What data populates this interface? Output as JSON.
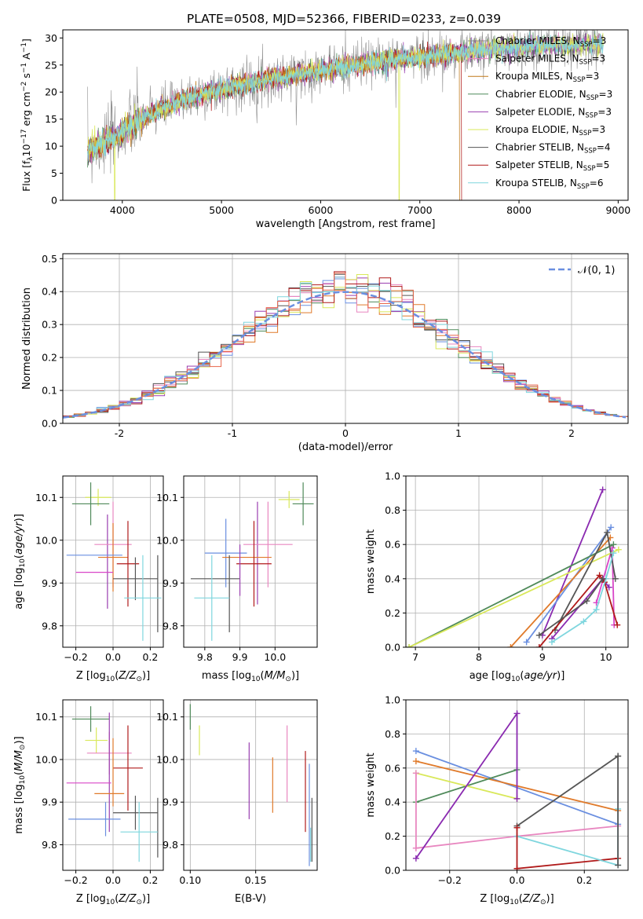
{
  "figure_title": "PLATE=0508, MJD=52366, FIBERID=0233, z=0.039",
  "colors": {
    "Chabrier MILES": "#8a8a8a",
    "Salpeter MILES": "#e887c0",
    "Kroupa MILES": "#c0781a",
    "Chabrier ELODIE": "#4f8a5a",
    "Salpeter ELODIE": "#9a3fb0",
    "Kroupa ELODIE": "#d9e85a",
    "Chabrier STELIB": "#555555",
    "Salpeter STELIB": "#b01a1a",
    "Kroupa STELIB": "#7fd6de",
    "extra_blue": "#6a8fe0",
    "extra_orange": "#e07a2a",
    "extra_magenta": "#d946c8",
    "extra_purple": "#8a2ab0"
  },
  "chart_data": [
    {
      "id": "spectrum",
      "type": "line",
      "xlabel": "wavelength [Angstrom, rest frame]",
      "ylabel": "Flux [f_λ 10^-17 erg cm^-2 s^-1 A^-1]",
      "xlim": [
        3400,
        9100
      ],
      "ylim": [
        0,
        31.5
      ],
      "xticks": [
        4000,
        5000,
        6000,
        7000,
        8000,
        9000
      ],
      "yticks": [
        0,
        5,
        10,
        15,
        20,
        25,
        30
      ],
      "legend_position": "top-right",
      "legend": [
        {
          "label": "Chabrier MILES, N",
          "sub": "SSP",
          "suffix": "=3",
          "color": "#8a8a8a"
        },
        {
          "label": "Salpeter MILES, N",
          "sub": "SSP",
          "suffix": "=3",
          "color": "#e887c0"
        },
        {
          "label": "Kroupa MILES, N",
          "sub": "SSP",
          "suffix": "=3",
          "color": "#c0781a"
        },
        {
          "label": "Chabrier ELODIE, N",
          "sub": "SSP",
          "suffix": "=3",
          "color": "#4f8a5a"
        },
        {
          "label": "Salpeter ELODIE, N",
          "sub": "SSP",
          "suffix": "=3",
          "color": "#9a3fb0"
        },
        {
          "label": "Kroupa ELODIE, N",
          "sub": "SSP",
          "suffix": "=3",
          "color": "#d9e85a"
        },
        {
          "label": "Chabrier STELIB, N",
          "sub": "SSP",
          "suffix": "=4",
          "color": "#555555"
        },
        {
          "label": "Salpeter STELIB, N",
          "sub": "SSP",
          "suffix": "=5",
          "color": "#b01a1a"
        },
        {
          "label": "Kroupa STELIB, N",
          "sub": "SSP",
          "suffix": "=6",
          "color": "#7fd6de"
        }
      ],
      "continuum": [
        [
          3650,
          9
        ],
        [
          3800,
          10.5
        ],
        [
          3950,
          12
        ],
        [
          4100,
          14
        ],
        [
          4300,
          16
        ],
        [
          4600,
          18.5
        ],
        [
          5000,
          20.5
        ],
        [
          5500,
          22.5
        ],
        [
          6000,
          24
        ],
        [
          6500,
          25.5
        ],
        [
          7000,
          26.5
        ],
        [
          7500,
          27.5
        ],
        [
          8000,
          28.3
        ],
        [
          8500,
          28.7
        ],
        [
          8800,
          29
        ]
      ],
      "cutoffs": [
        {
          "model": "Kroupa ELODIE",
          "x": 3920
        },
        {
          "model": "Kroupa ELODIE",
          "x": 6790
        },
        {
          "model": "Kroupa MILES",
          "x": 7400
        },
        {
          "model": "Salpeter STELIB",
          "x": 7420
        }
      ]
    },
    {
      "id": "residuals",
      "type": "step",
      "xlabel": "(data-model)/error",
      "ylabel": "Normed distribution",
      "xlim": [
        -2.5,
        2.5
      ],
      "ylim": [
        0,
        0.515
      ],
      "xticks": [
        -2,
        -1,
        0,
        1,
        2
      ],
      "yticks": [
        0.0,
        0.1,
        0.2,
        0.3,
        0.4,
        0.5
      ],
      "bin_width": 0.1,
      "legend": {
        "label": "𝒩(0, 1)",
        "color": "#6a8fe0"
      },
      "series_colors": [
        "#6a8fe0",
        "#e07a2a",
        "#4f8a5a",
        "#9a3fb0",
        "#e887c0",
        "#d9e85a",
        "#555555",
        "#b01a1a",
        "#7fd6de",
        "#e8654a"
      ]
    },
    {
      "id": "age_vs_Z",
      "type": "errorbar",
      "xlabel": "Z [log10(Z/Z⊙)]",
      "ylabel": "age  [log10(age/yr)]",
      "xlim": [
        -0.27,
        0.27
      ],
      "ylim": [
        9.75,
        10.15
      ],
      "xticks": [
        -0.2,
        0.0,
        0.2
      ],
      "yticks": [
        9.8,
        9.9,
        10.0,
        10.1
      ],
      "points": [
        {
          "x": -0.08,
          "xerr": 0.07,
          "y": 10.1,
          "yerr": 0.02,
          "color": "#d9e85a"
        },
        {
          "x": -0.12,
          "xerr": 0.1,
          "y": 10.085,
          "yerr": 0.05,
          "color": "#4f8a5a"
        },
        {
          "x": -0.03,
          "xerr": 0.0,
          "y": 9.95,
          "yerr": 0.11,
          "color": "#9a3fb0"
        },
        {
          "x": 0.0,
          "xerr": 0.1,
          "y": 9.99,
          "yerr": 0.1,
          "color": "#e887c0"
        },
        {
          "x": 0.0,
          "xerr": 0.08,
          "y": 9.96,
          "yerr": 0.08,
          "color": "#e07a2a"
        },
        {
          "x": -0.1,
          "xerr": 0.15,
          "y": 9.965,
          "yerr": 0.0,
          "color": "#6a8fe0"
        },
        {
          "x": 0.08,
          "xerr": 0.06,
          "y": 9.945,
          "yerr": 0.1,
          "color": "#b01a1a"
        },
        {
          "x": -0.1,
          "xerr": 0.1,
          "y": 9.925,
          "yerr": 0.0,
          "color": "#d946c8"
        },
        {
          "x": 0.12,
          "xerr": 0.12,
          "y": 9.91,
          "yerr": 0.05,
          "color": "#555555"
        },
        {
          "x": 0.24,
          "xerr": 0.0,
          "y": 9.875,
          "yerr": 0.09,
          "color": "#555555"
        },
        {
          "x": 0.16,
          "xerr": 0.1,
          "y": 9.865,
          "yerr": 0.1,
          "color": "#7fd6de"
        }
      ]
    },
    {
      "id": "age_vs_mass",
      "type": "errorbar",
      "xlabel": "mass [log10(M/M⊙)]",
      "xlim": [
        9.74,
        10.12
      ],
      "ylim": [
        9.75,
        10.15
      ],
      "xticks": [
        9.8,
        9.9,
        10.0
      ],
      "yticks": [
        9.8,
        9.9,
        10.0,
        10.1
      ],
      "points": [
        {
          "x": 10.04,
          "xerr": 0.03,
          "y": 10.095,
          "yerr": 0.02,
          "color": "#d9e85a"
        },
        {
          "x": 10.08,
          "xerr": 0.03,
          "y": 10.085,
          "yerr": 0.05,
          "color": "#4f8a5a"
        },
        {
          "x": 9.95,
          "xerr": 0.0,
          "y": 9.97,
          "yerr": 0.12,
          "color": "#9a3fb0"
        },
        {
          "x": 9.98,
          "xerr": 0.07,
          "y": 9.99,
          "yerr": 0.1,
          "color": "#e887c0"
        },
        {
          "x": 9.86,
          "xerr": 0.06,
          "y": 9.97,
          "yerr": 0.08,
          "color": "#6a8fe0"
        },
        {
          "x": 9.92,
          "xerr": 0.07,
          "y": 9.96,
          "yerr": 0.0,
          "color": "#e07a2a"
        },
        {
          "x": 9.94,
          "xerr": 0.05,
          "y": 9.945,
          "yerr": 0.1,
          "color": "#b01a1a"
        },
        {
          "x": 9.83,
          "xerr": 0.07,
          "y": 9.91,
          "yerr": 0.0,
          "color": "#555555"
        },
        {
          "x": 9.87,
          "xerr": 0.0,
          "y": 9.875,
          "yerr": 0.09,
          "color": "#555555"
        },
        {
          "x": 9.82,
          "xerr": 0.05,
          "y": 9.865,
          "yerr": 0.1,
          "color": "#7fd6de"
        },
        {
          "x": 9.9,
          "xerr": 0.0,
          "y": 9.93,
          "yerr": 0.06,
          "color": "#9a3fb0"
        }
      ]
    },
    {
      "id": "mass_weight_vs_age",
      "type": "line",
      "xlabel": "age  [log10(age/yr)]",
      "ylabel": "mass weight",
      "xlim": [
        6.85,
        10.35
      ],
      "ylim": [
        0.0,
        1.0
      ],
      "xticks": [
        7,
        8,
        9,
        10
      ],
      "yticks": [
        0.0,
        0.2,
        0.4,
        0.6,
        0.8,
        1.0
      ],
      "series": [
        {
          "color": "#d946c8",
          "x": [
            9.85,
            10.1,
            10.13
          ],
          "y": [
            0.26,
            0.58,
            0.13
          ]
        },
        {
          "color": "#8a2ab0",
          "x": [
            9.0,
            9.95
          ],
          "y": [
            0.07,
            0.92
          ]
        },
        {
          "color": "#6a8fe0",
          "x": [
            8.75,
            10.08
          ],
          "y": [
            0.03,
            0.7
          ]
        },
        {
          "color": "#e07a2a",
          "x": [
            8.5,
            10.07
          ],
          "y": [
            0.0,
            0.64
          ]
        },
        {
          "color": "#4f8a5a",
          "x": [
            6.9,
            10.12
          ],
          "y": [
            0.0,
            0.6
          ]
        },
        {
          "color": "#d9e85a",
          "x": [
            6.9,
            10.2
          ],
          "y": [
            0.0,
            0.57
          ]
        },
        {
          "color": "#555555",
          "x": [
            9.2,
            10.02,
            10.15
          ],
          "y": [
            0.1,
            0.67,
            0.4
          ]
        },
        {
          "color": "#8a2ab0",
          "x": [
            9.15,
            9.95,
            10.05
          ],
          "y": [
            0.05,
            0.4,
            0.35
          ]
        },
        {
          "color": "#b01a1a",
          "x": [
            8.95,
            9.9,
            9.98,
            10.18
          ],
          "y": [
            0.0,
            0.42,
            0.38,
            0.13
          ]
        },
        {
          "color": "#7fd6de",
          "x": [
            9.15,
            9.65,
            9.85,
            10.0,
            10.12
          ],
          "y": [
            0.03,
            0.15,
            0.22,
            0.4,
            0.55
          ]
        },
        {
          "color": "#555555",
          "x": [
            8.95,
            9.7,
            9.95
          ],
          "y": [
            0.07,
            0.27,
            0.4
          ]
        }
      ]
    },
    {
      "id": "mass_vs_Z",
      "type": "errorbar",
      "xlabel": "Z [log10(Z/Z⊙)]",
      "ylabel": "mass [log10(M/M⊙)]",
      "xlim": [
        -0.27,
        0.27
      ],
      "ylim": [
        9.74,
        10.14
      ],
      "xticks": [
        -0.2,
        0.0,
        0.2
      ],
      "yticks": [
        9.8,
        9.9,
        10.0,
        10.1
      ],
      "points": [
        {
          "x": -0.12,
          "xerr": 0.1,
          "y": 10.095,
          "yerr": 0.03,
          "color": "#4f8a5a"
        },
        {
          "x": -0.09,
          "xerr": 0.06,
          "y": 10.045,
          "yerr": 0.03,
          "color": "#d9e85a"
        },
        {
          "x": -0.02,
          "xerr": 0.12,
          "y": 10.015,
          "yerr": 0.05,
          "color": "#e887c0"
        },
        {
          "x": -0.02,
          "xerr": 0.0,
          "y": 9.97,
          "yerr": 0.14,
          "color": "#9a3fb0"
        },
        {
          "x": 0.08,
          "xerr": 0.08,
          "y": 9.98,
          "yerr": 0.1,
          "color": "#b01a1a"
        },
        {
          "x": -0.13,
          "xerr": 0.12,
          "y": 9.945,
          "yerr": 0.0,
          "color": "#d946c8"
        },
        {
          "x": -0.02,
          "xerr": 0.08,
          "y": 9.92,
          "yerr": 0.0,
          "color": "#e07a2a"
        },
        {
          "x": 0.0,
          "xerr": 0.0,
          "y": 9.97,
          "yerr": 0.08,
          "color": "#e07a2a"
        },
        {
          "x": 0.12,
          "xerr": 0.12,
          "y": 9.875,
          "yerr": 0.04,
          "color": "#555555"
        },
        {
          "x": 0.24,
          "xerr": 0.0,
          "y": 9.84,
          "yerr": 0.07,
          "color": "#555555"
        },
        {
          "x": 0.14,
          "xerr": 0.1,
          "y": 9.83,
          "yerr": 0.07,
          "color": "#7fd6de"
        },
        {
          "x": -0.1,
          "xerr": 0.14,
          "y": 9.86,
          "yerr": 0.0,
          "color": "#6a8fe0"
        },
        {
          "x": -0.04,
          "xerr": 0.0,
          "y": 9.86,
          "yerr": 0.04,
          "color": "#6a8fe0"
        }
      ]
    },
    {
      "id": "mass_vs_ebv",
      "type": "errorbar",
      "xlabel": "E(B-V)",
      "xlim": [
        0.095,
        0.197
      ],
      "ylim": [
        9.74,
        10.14
      ],
      "xticks": [
        0.1,
        0.15
      ],
      "yticks": [
        9.8,
        9.9,
        10.0,
        10.1
      ],
      "points": [
        {
          "x": 0.1,
          "xerr": 0.0,
          "y": 10.1,
          "yerr": 0.03,
          "color": "#4f8a5a"
        },
        {
          "x": 0.107,
          "xerr": 0.0,
          "y": 10.045,
          "yerr": 0.035,
          "color": "#d9e85a"
        },
        {
          "x": 0.145,
          "xerr": 0.0,
          "y": 9.95,
          "yerr": 0.09,
          "color": "#9a3fb0"
        },
        {
          "x": 0.174,
          "xerr": 0.0,
          "y": 9.99,
          "yerr": 0.09,
          "color": "#e887c0"
        },
        {
          "x": 0.163,
          "xerr": 0.0,
          "y": 9.94,
          "yerr": 0.065,
          "color": "#e07a2a"
        },
        {
          "x": 0.188,
          "xerr": 0.0,
          "y": 9.925,
          "yerr": 0.095,
          "color": "#b01a1a"
        },
        {
          "x": 0.191,
          "xerr": 0.0,
          "y": 9.87,
          "yerr": 0.12,
          "color": "#6a8fe0"
        },
        {
          "x": 0.193,
          "xerr": 0.0,
          "y": 9.835,
          "yerr": 0.075,
          "color": "#555555"
        },
        {
          "x": 0.192,
          "xerr": 0.0,
          "y": 9.8,
          "yerr": 0.04,
          "color": "#7fd6de"
        }
      ]
    },
    {
      "id": "mass_weight_vs_Z",
      "type": "line",
      "xlabel": "Z [log10(Z/Z⊙)]",
      "ylabel": "mass weight",
      "xlim": [
        -0.33,
        0.33
      ],
      "ylim": [
        0.0,
        1.0
      ],
      "xticks": [
        -0.2,
        0.0,
        0.2
      ],
      "yticks": [
        0.0,
        0.2,
        0.4,
        0.6,
        0.8,
        1.0
      ],
      "series": [
        {
          "color": "#6a8fe0",
          "x": [
            -0.3,
            0.3
          ],
          "y": [
            0.7,
            0.27
          ]
        },
        {
          "color": "#e07a2a",
          "x": [
            -0.3,
            0.3
          ],
          "y": [
            0.64,
            0.35
          ]
        },
        {
          "color": "#4f8a5a",
          "x": [
            -0.3,
            0.0
          ],
          "y": [
            0.4,
            0.59
          ]
        },
        {
          "color": "#d9e85a",
          "x": [
            -0.3,
            0.0
          ],
          "y": [
            0.57,
            0.42
          ]
        },
        {
          "color": "#555555",
          "x": [
            0.0,
            0.3
          ],
          "y": [
            0.26,
            0.67
          ]
        },
        {
          "color": "#e887c0",
          "x": [
            -0.3,
            0.0,
            0.3
          ],
          "y": [
            0.13,
            0.2,
            0.26
          ]
        },
        {
          "color": "#8a2ab0",
          "x": [
            -0.3,
            0.0,
            0.0
          ],
          "y": [
            0.07,
            0.92,
            0.42
          ]
        },
        {
          "color": "#b01a1a",
          "x": [
            0.0,
            0.3
          ],
          "y": [
            0.01,
            0.07
          ]
        },
        {
          "color": "#7fd6de",
          "x": [
            0.0,
            0.3,
            0.3
          ],
          "y": [
            0.2,
            0.03,
            0.36
          ]
        },
        {
          "color": "#e887c0",
          "x": [
            -0.3,
            -0.3
          ],
          "y": [
            0.13,
            0.57
          ]
        },
        {
          "color": "#b01a1a",
          "x": [
            0.0,
            0.0
          ],
          "y": [
            0.01,
            0.25
          ]
        },
        {
          "color": "#555555",
          "x": [
            0.3,
            0.3
          ],
          "y": [
            0.03,
            0.67
          ]
        }
      ]
    }
  ]
}
